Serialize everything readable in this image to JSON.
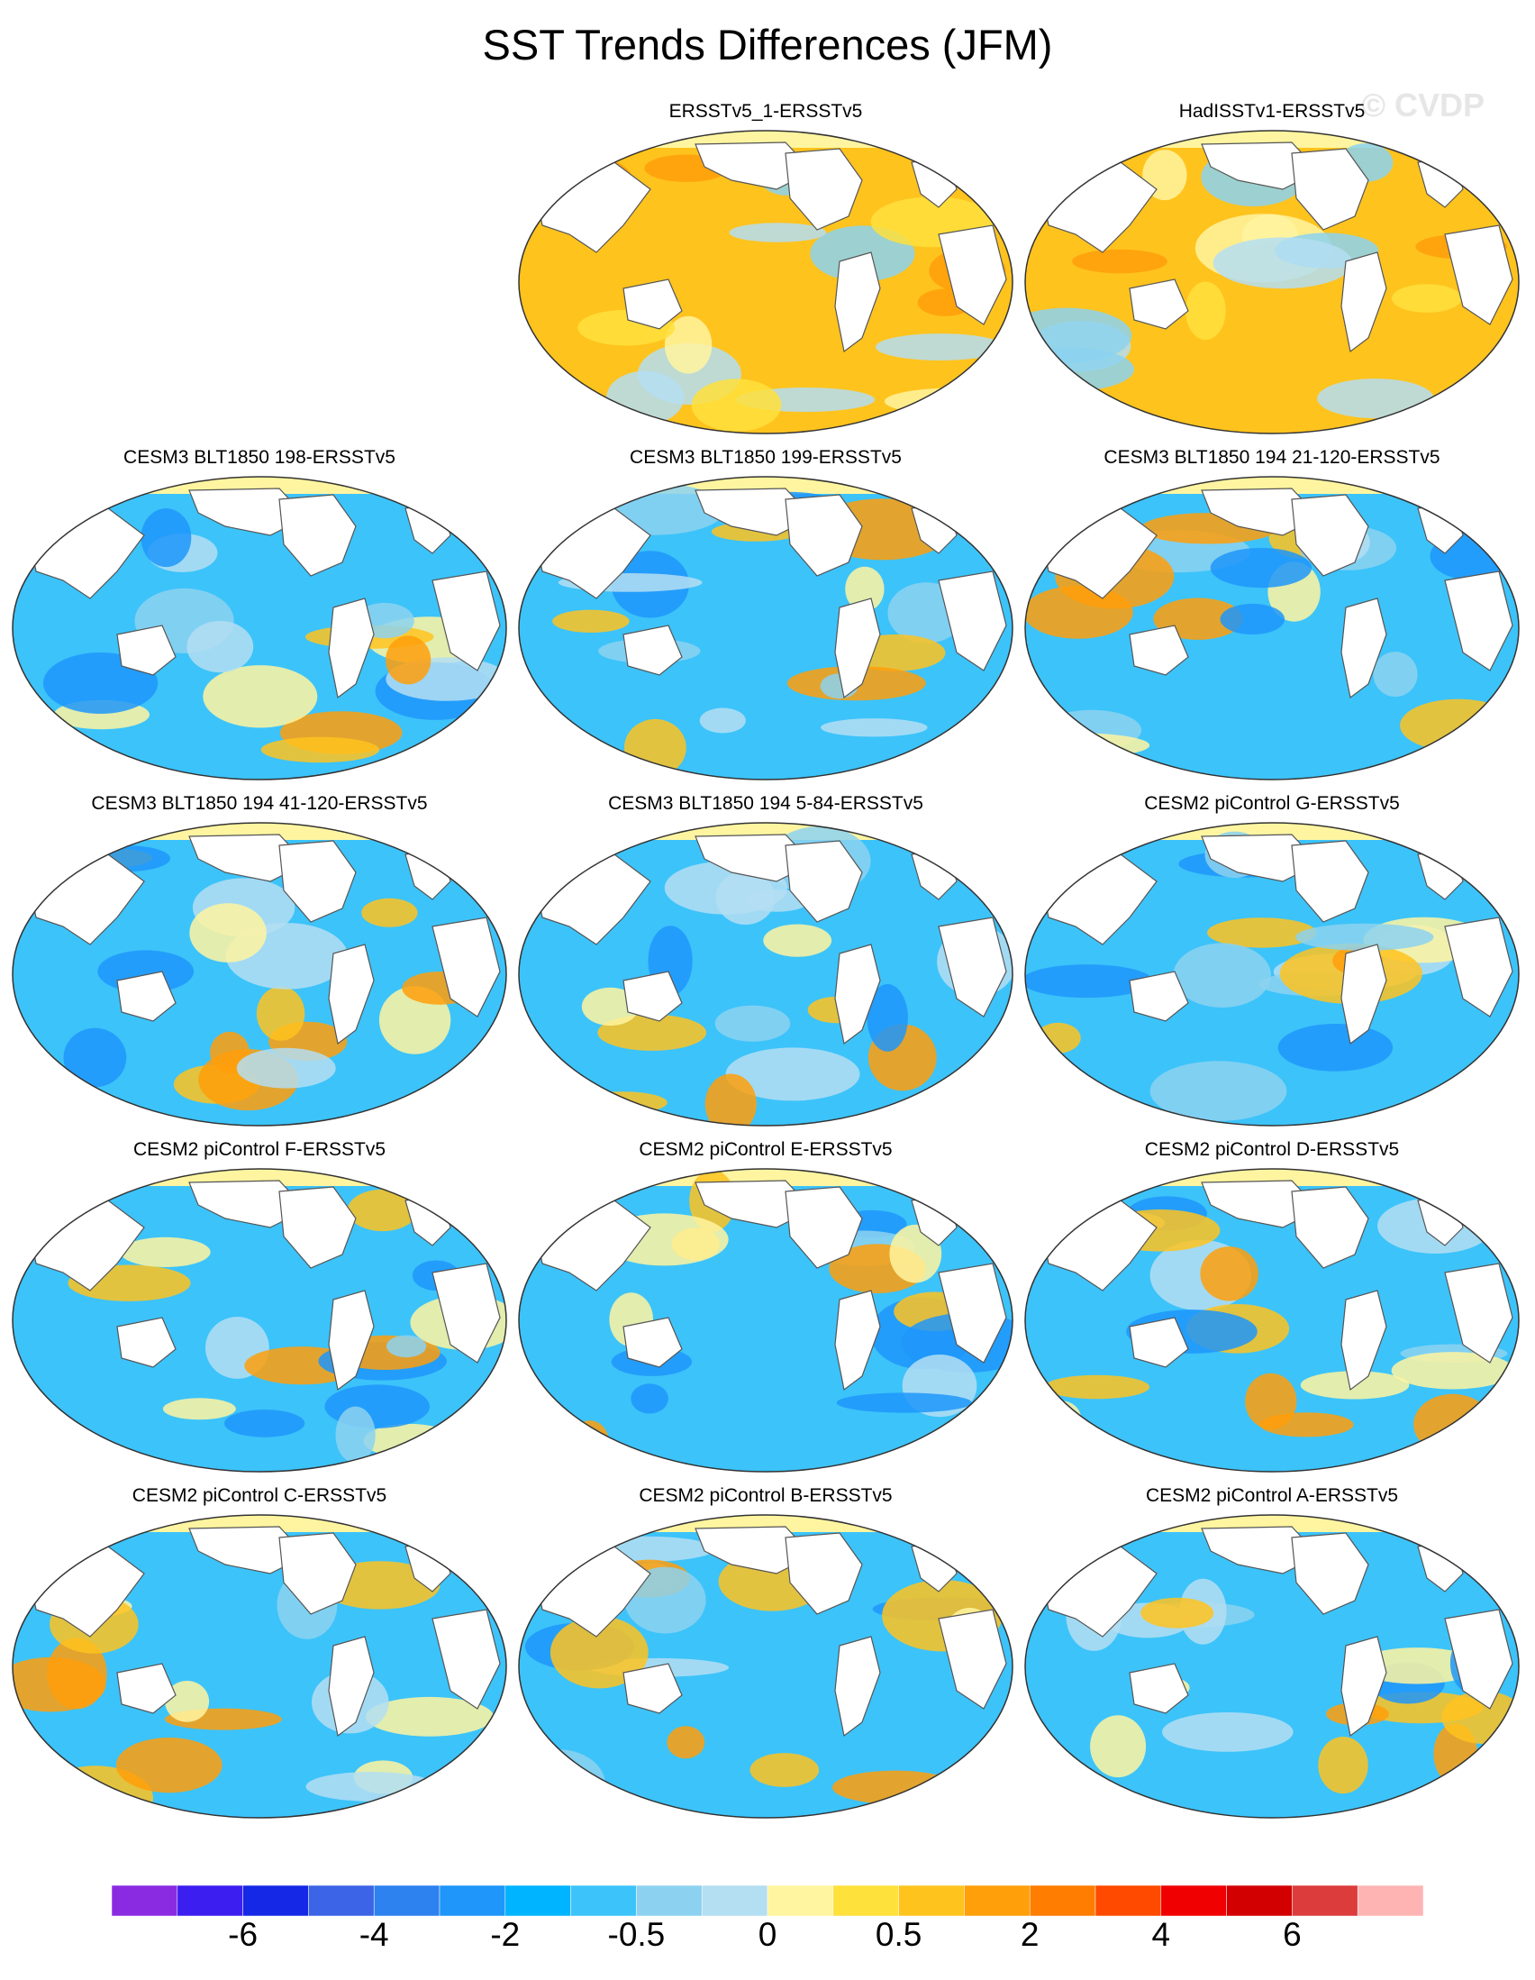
{
  "title": "SST Trends Differences (JFM)",
  "watermark": "© CVDP",
  "panels": [
    {
      "name": "ERSSTv5_1-ERSSTv5",
      "tone": "warm"
    },
    {
      "name": "HadISSTv1-ERSSTv5",
      "tone": "warm"
    },
    {
      "name": "CESM3 BLT1850 198-ERSSTv5",
      "tone": "cool"
    },
    {
      "name": "CESM3 BLT1850 199-ERSSTv5",
      "tone": "cool"
    },
    {
      "name": "CESM3 BLT1850 194 21-120-ERSSTv5",
      "tone": "cool"
    },
    {
      "name": "CESM3 BLT1850 194 41-120-ERSSTv5",
      "tone": "cool"
    },
    {
      "name": "CESM3 BLT1850 194 5-84-ERSSTv5",
      "tone": "cool"
    },
    {
      "name": "CESM2 piControl G-ERSSTv5",
      "tone": "cool"
    },
    {
      "name": "CESM2 piControl F-ERSSTv5",
      "tone": "cool"
    },
    {
      "name": "CESM2 piControl E-ERSSTv5",
      "tone": "cool"
    },
    {
      "name": "CESM2 piControl D-ERSSTv5",
      "tone": "cool"
    },
    {
      "name": "CESM2 piControl C-ERSSTv5",
      "tone": "cool"
    },
    {
      "name": "CESM2 piControl B-ERSSTv5",
      "tone": "cool"
    },
    {
      "name": "CESM2 piControl A-ERSSTv5",
      "tone": "cool"
    }
  ],
  "colorbar": {
    "colors": [
      "#8a2be2",
      "#3c1ef0",
      "#1428e6",
      "#3c64e6",
      "#2d82f0",
      "#1e96fa",
      "#00b4ff",
      "#3cc3fa",
      "#8cd2f0",
      "#b4def2",
      "#fff5a0",
      "#ffe13c",
      "#ffc31e",
      "#ff9f0a",
      "#ff7d00",
      "#ff4a00",
      "#f00000",
      "#d20000",
      "#dc3c3c",
      "#ffb4b4"
    ],
    "labels": [
      "-6",
      "-4",
      "-2",
      "-0.5",
      "0",
      "0.5",
      "2",
      "4",
      "6"
    ],
    "label_boundaries": [
      2,
      4,
      6,
      8,
      10,
      12,
      14,
      16,
      18
    ]
  }
}
